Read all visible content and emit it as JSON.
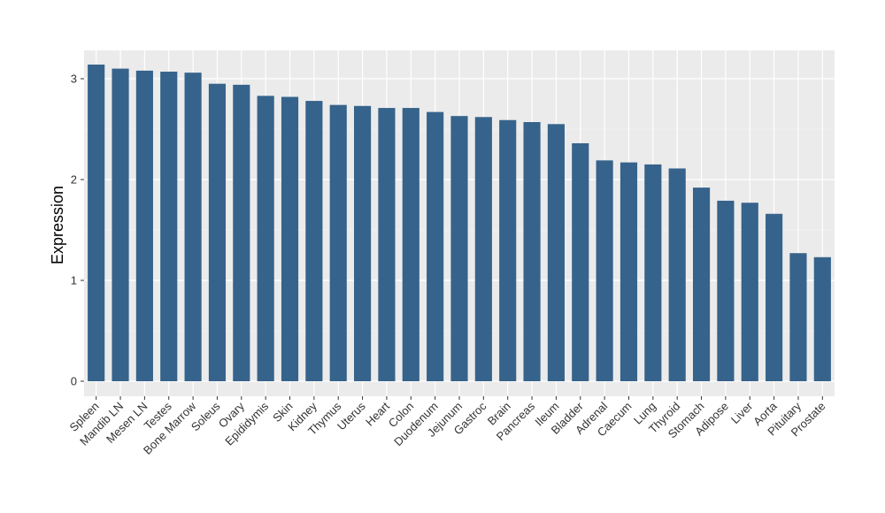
{
  "chart_data": {
    "type": "bar",
    "title": "",
    "xlabel": "",
    "ylabel": "Expression",
    "ylim": [
      0,
      3.2
    ],
    "yticks": [
      0,
      1,
      2,
      3
    ],
    "grid": true,
    "bar_color": "#36638b",
    "panel_background": "#ebebeb",
    "categories": [
      "Spleen",
      "Mandib LN",
      "Mesen LN",
      "Testes",
      "Bone Marrow",
      "Soleus",
      "Ovary",
      "Epididymis",
      "Skin",
      "Kidney",
      "Thymus",
      "Uterus",
      "Heart",
      "Colon",
      "Duodenum",
      "Jejunum",
      "Gastroc",
      "Brain",
      "Pancreas",
      "Ileum",
      "Bladder",
      "Adrenal",
      "Caecum",
      "Lung",
      "Thyroid",
      "Stomach",
      "Adipose",
      "Liver",
      "Aorta",
      "Pituitary",
      "Prostate"
    ],
    "values": [
      3.14,
      3.1,
      3.08,
      3.07,
      3.06,
      2.95,
      2.94,
      2.83,
      2.82,
      2.78,
      2.74,
      2.73,
      2.71,
      2.71,
      2.67,
      2.63,
      2.62,
      2.59,
      2.57,
      2.55,
      2.36,
      2.19,
      2.17,
      2.15,
      2.11,
      1.92,
      1.79,
      1.77,
      1.66,
      1.27,
      1.23
    ]
  }
}
